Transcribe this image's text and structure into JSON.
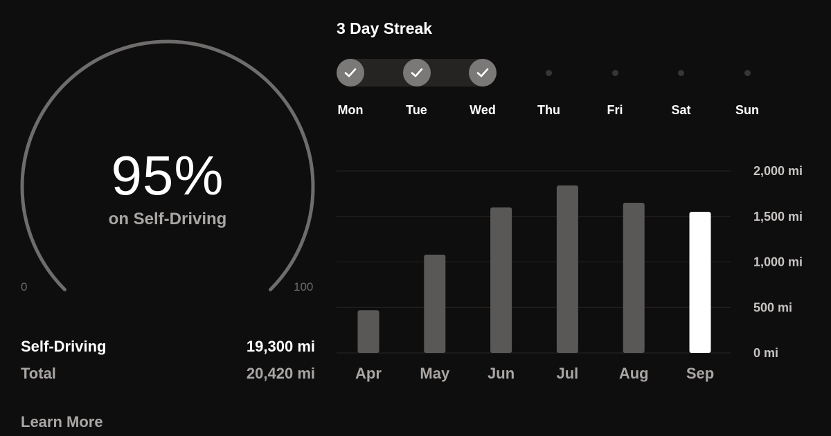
{
  "gauge": {
    "percent_label": "95%",
    "value": 95,
    "subtitle": "on Self-Driving",
    "min_label": "0",
    "max_label": "100",
    "track_color": "#6f6d6c",
    "fill_color": "#6f6d6c"
  },
  "stats": {
    "self_driving": {
      "label": "Self-Driving",
      "value": "19,300 mi"
    },
    "total": {
      "label": "Total",
      "value": "20,420 mi"
    }
  },
  "learn_more_label": "Learn More",
  "streak": {
    "title": "3 Day Streak",
    "days": [
      {
        "label": "Mon",
        "done": true
      },
      {
        "label": "Tue",
        "done": true
      },
      {
        "label": "Wed",
        "done": true
      },
      {
        "label": "Thu",
        "done": false
      },
      {
        "label": "Fri",
        "done": false
      },
      {
        "label": "Sat",
        "done": false
      },
      {
        "label": "Sun",
        "done": false
      }
    ]
  },
  "chart_data": {
    "type": "bar",
    "categories": [
      "Apr",
      "May",
      "Jun",
      "Jul",
      "Aug",
      "Sep"
    ],
    "values": [
      470,
      1080,
      1600,
      1840,
      1650,
      1550
    ],
    "highlight_index": 5,
    "yticks": [
      "0 mi",
      "500 mi",
      "1,000 mi",
      "1,500 mi",
      "2,000 mi"
    ],
    "ylim": [
      0,
      2000
    ],
    "grid": true,
    "bar_color": "#5a5857",
    "highlight_color": "#ffffff"
  }
}
